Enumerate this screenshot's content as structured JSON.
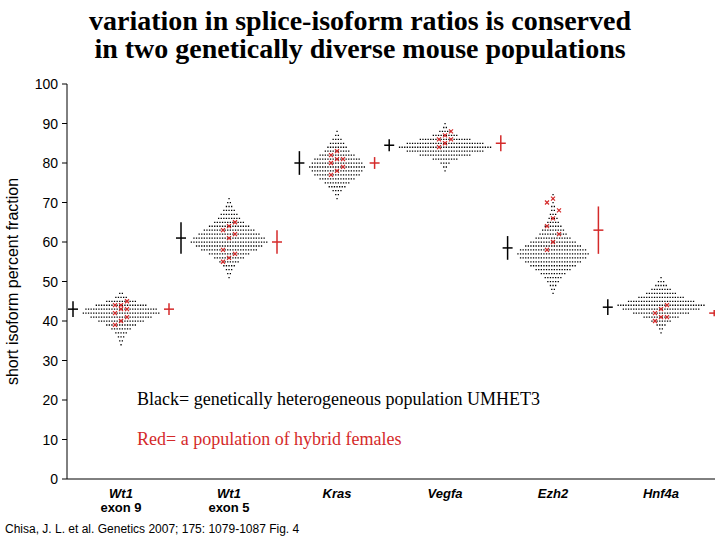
{
  "chart_data": {
    "type": "scatter",
    "title": [
      "variation in splice-isoform ratios is conserved",
      "in two genetically diverse mouse populations"
    ],
    "y_label": "short isoform percent fraction",
    "categories": [
      "Wt1 exon 9",
      "Wt1 exon 5",
      "Kras",
      "Vegfa",
      "Ezh2",
      "Hnf4a"
    ],
    "ylim": [
      0,
      100
    ],
    "yticks": [
      0,
      10,
      20,
      30,
      40,
      50,
      60,
      70,
      80,
      90,
      100
    ],
    "grid": false,
    "citation": "Chisa, J. L. et al. Genetics 2007; 175: 1079-1087 Fig. 4",
    "series": [
      {
        "name": "Black= genetically heterogeneous population UMHET3",
        "color": "#000000",
        "values": [
          43,
          61,
          80,
          84.5,
          58.5,
          43.5
        ],
        "errors": [
          2,
          4,
          3,
          1.5,
          3,
          2
        ],
        "distribution": [
          {
            "y": [
              34,
              35,
              36,
              37,
              38,
              39,
              40,
              41,
              42,
              43,
              44,
              45,
              46,
              47
            ],
            "counts": [
              1,
              2,
              3,
              5,
              8,
              12,
              18,
              24,
              30,
              28,
              20,
              12,
              5,
              2
            ]
          },
          {
            "y": [
              51,
              52,
              53,
              54,
              55,
              56,
              57,
              58,
              59,
              60,
              61,
              62,
              63,
              64,
              65,
              66,
              67,
              68,
              69,
              70,
              71
            ],
            "counts": [
              1,
              2,
              3,
              5,
              8,
              12,
              16,
              22,
              26,
              30,
              28,
              24,
              20,
              16,
              12,
              9,
              7,
              5,
              3,
              2,
              1
            ]
          },
          {
            "y": [
              71,
              72,
              73,
              74,
              75,
              76,
              77,
              78,
              79,
              80,
              81,
              82,
              83,
              84,
              85,
              86,
              87,
              88
            ],
            "counts": [
              1,
              2,
              4,
              7,
              10,
              14,
              18,
              20,
              22,
              20,
              18,
              14,
              10,
              8,
              6,
              4,
              2,
              1
            ]
          },
          {
            "y": [
              78,
              79,
              80,
              81,
              82,
              83,
              84,
              85,
              86,
              87,
              88,
              89,
              90
            ],
            "counts": [
              1,
              2,
              4,
              10,
              20,
              30,
              36,
              30,
              20,
              10,
              5,
              2,
              1
            ]
          },
          {
            "y": [
              47,
              48,
              49,
              50,
              51,
              52,
              53,
              54,
              55,
              56,
              57,
              58,
              59,
              60,
              61,
              62,
              63,
              64,
              65,
              66,
              67,
              68,
              69,
              70,
              71,
              72
            ],
            "counts": [
              1,
              2,
              3,
              5,
              7,
              10,
              14,
              18,
              22,
              26,
              28,
              26,
              22,
              18,
              14,
              11,
              9,
              7,
              5,
              4,
              3,
              2,
              2,
              1,
              1,
              1
            ]
          },
          {
            "y": [
              37,
              38,
              39,
              40,
              41,
              42,
              43,
              44,
              45,
              46,
              47,
              48,
              49,
              50,
              51
            ],
            "counts": [
              1,
              2,
              4,
              8,
              14,
              22,
              30,
              34,
              26,
              18,
              12,
              8,
              5,
              3,
              1
            ]
          }
        ]
      },
      {
        "name": "Red= a population of hybrid females",
        "color": "#d42a2a",
        "values": [
          43,
          60,
          80,
          85,
          63,
          42
        ],
        "errors": [
          1.5,
          3,
          1.5,
          2,
          6,
          0.8
        ],
        "points": [
          [
            39,
            40,
            41,
            42,
            43,
            43,
            44,
            44,
            45
          ],
          [
            55,
            56,
            57,
            58,
            61,
            62,
            63,
            64,
            65
          ],
          [
            77,
            78,
            79,
            80,
            81,
            81,
            82,
            83
          ],
          [
            84,
            85,
            86,
            86,
            87,
            88
          ],
          [
            58,
            60,
            62,
            64,
            66,
            68,
            70,
            71
          ],
          [
            40,
            41,
            41,
            42,
            43,
            44
          ]
        ]
      }
    ]
  }
}
